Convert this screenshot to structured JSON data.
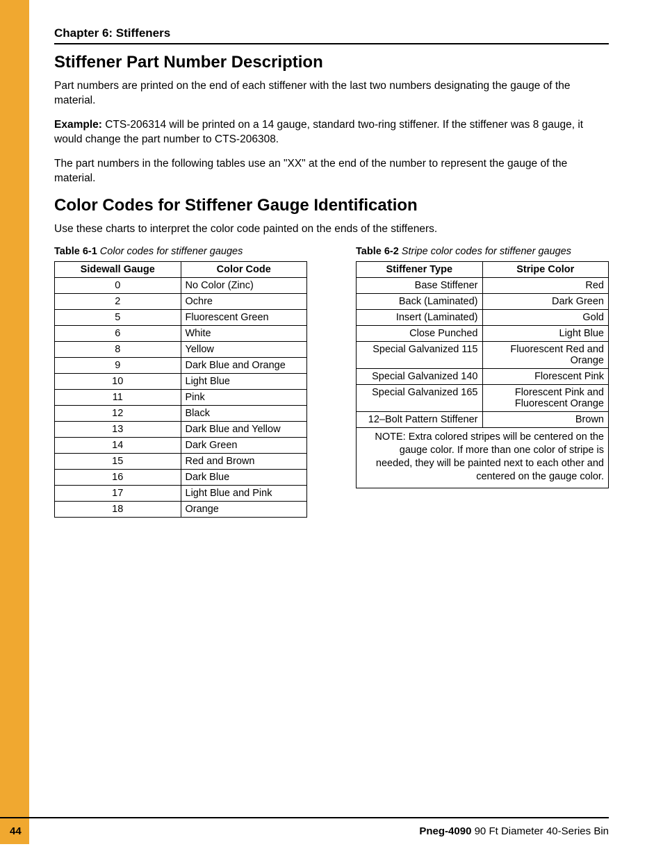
{
  "header": {
    "chapter": "Chapter 6: Stiffeners"
  },
  "section1": {
    "title": "Stiffener Part Number Description",
    "p1": "Part numbers are printed on the end of each stiffener with the last two numbers designating the gauge of the material.",
    "example_label": "Example:",
    "example_text": " CTS-206314 will be printed on a 14 gauge, standard two-ring stiffener. If the stiffener was 8 gauge, it would change the part number to CTS-206308.",
    "p3": "The part numbers in the following tables use an \"XX\" at the end of the number to represent the gauge of the material."
  },
  "section2": {
    "title": "Color Codes for Stiffener Gauge Identification",
    "p1": "Use these charts to interpret the color code painted on the ends of the stiffeners."
  },
  "table1": {
    "num": "Table 6-1",
    "title": " Color codes for stiffener gauges",
    "col1": "Sidewall Gauge",
    "col2": "Color Code",
    "rows": [
      {
        "a": "0",
        "b": "No Color (Zinc)"
      },
      {
        "a": "2",
        "b": "Ochre"
      },
      {
        "a": "5",
        "b": "Fluorescent Green"
      },
      {
        "a": "6",
        "b": "White"
      },
      {
        "a": "8",
        "b": "Yellow"
      },
      {
        "a": "9",
        "b": "Dark Blue and Orange"
      },
      {
        "a": "10",
        "b": "Light Blue"
      },
      {
        "a": "11",
        "b": "Pink"
      },
      {
        "a": "12",
        "b": "Black"
      },
      {
        "a": "13",
        "b": "Dark Blue and Yellow"
      },
      {
        "a": "14",
        "b": "Dark Green"
      },
      {
        "a": "15",
        "b": "Red and Brown"
      },
      {
        "a": "16",
        "b": "Dark Blue"
      },
      {
        "a": "17",
        "b": "Light Blue and Pink"
      },
      {
        "a": "18",
        "b": "Orange"
      }
    ]
  },
  "table2": {
    "num": "Table 6-2",
    "title": " Stripe color codes for stiffener gauges",
    "col1": "Stiffener Type",
    "col2": "Stripe Color",
    "rows": [
      {
        "a": "Base Stiffener",
        "b": "Red"
      },
      {
        "a": "Back (Laminated)",
        "b": "Dark Green"
      },
      {
        "a": "Insert (Laminated)",
        "b": "Gold"
      },
      {
        "a": "Close Punched",
        "b": "Light Blue"
      },
      {
        "a": "Special Galvanized 115",
        "b": "Fluorescent Red and Orange"
      },
      {
        "a": "Special Galvanized 140",
        "b": "Florescent Pink"
      },
      {
        "a": "Special Galvanized 165",
        "b": "Florescent Pink and Fluorescent Orange"
      },
      {
        "a": "12–Bolt Pattern Stiffener",
        "b": "Brown"
      }
    ],
    "note": "NOTE: Extra colored stripes will be centered on the gauge color. If more than one color of stripe is needed, they will be painted next to each other and centered on the gauge color."
  },
  "footer": {
    "page": "44",
    "doc_id": "Pneg-4090",
    "doc_title": " 90 Ft Diameter 40-Series Bin"
  }
}
